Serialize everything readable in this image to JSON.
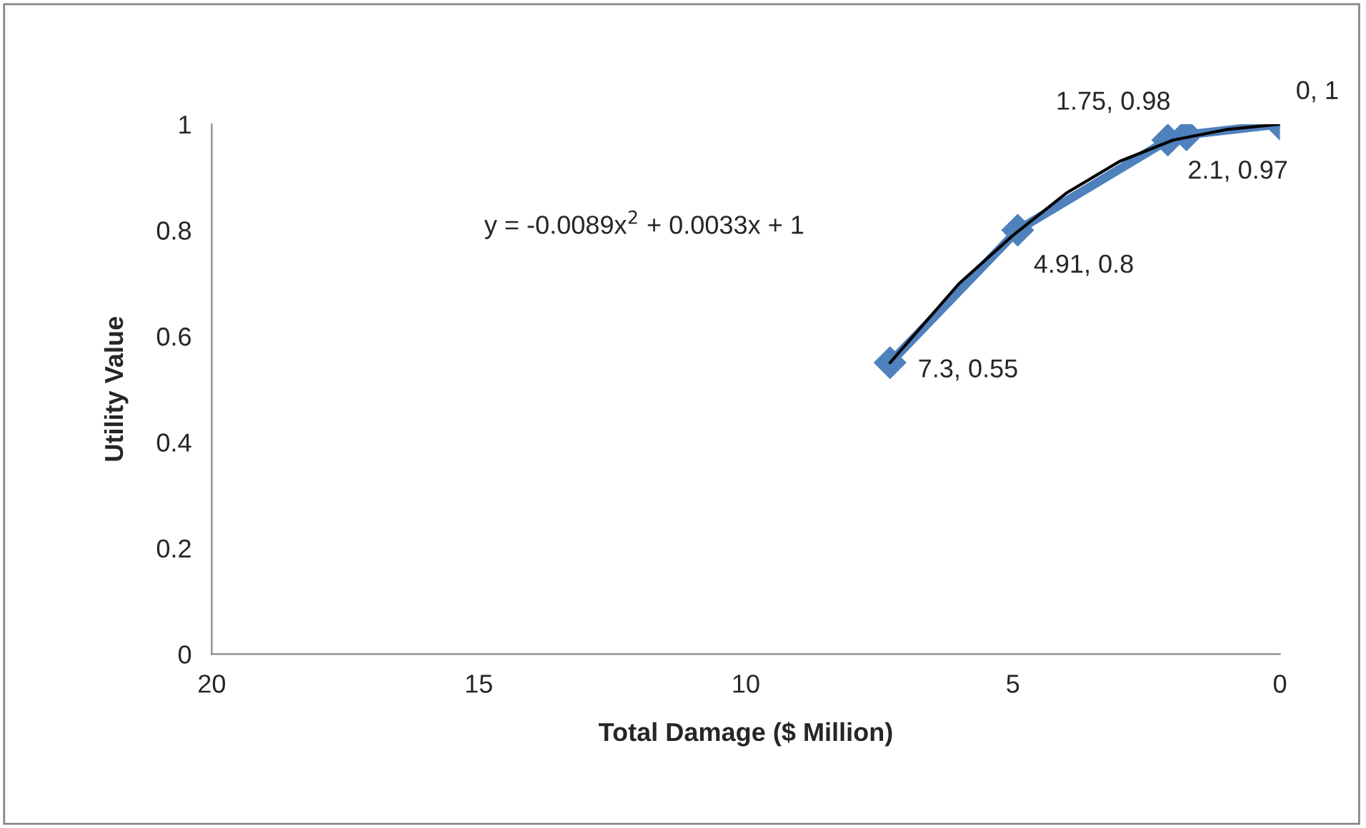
{
  "chart_data": {
    "type": "line",
    "xlabel": "Total Damage ($ Million)",
    "ylabel": "Utility Value",
    "xlim": [
      20,
      0
    ],
    "xticks": [
      20,
      15,
      10,
      5,
      0
    ],
    "ylim": [
      0,
      1
    ],
    "yticks": [
      0,
      0.2,
      0.4,
      0.6,
      0.8,
      1
    ],
    "grid": false,
    "legend": false,
    "annotations": [
      "y = -0.0089x$^{2}$ + 0.0033x + 1"
    ],
    "series": [
      {
        "color": "#4f81bd",
        "marker": "diamond",
        "line_style": "solid",
        "x": [
          7.3,
          4.91,
          2.1,
          1.75,
          0
        ],
        "values": [
          0.55,
          0.8,
          0.97,
          0.98,
          1
        ],
        "value_labels": [
          "7.3, 0.55",
          "4.91, 0.8",
          "2.1, 0.97",
          "1.75, 0.98",
          "0, 1"
        ]
      },
      {
        "color": "#000000",
        "marker": "none",
        "line_style": "solid",
        "x": [
          7.3,
          6,
          5,
          4,
          3,
          2,
          1,
          0
        ],
        "values": [
          0.55,
          0.7,
          0.79,
          0.87,
          0.93,
          0.97,
          0.99,
          1
        ]
      }
    ]
  }
}
